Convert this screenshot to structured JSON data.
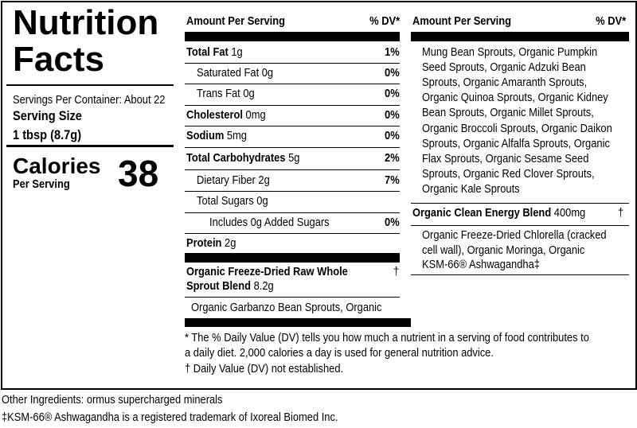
{
  "panel": {
    "title": "Nutrition Facts",
    "servings_per_container": "Servings Per Container: About 22",
    "serving_size_label": "Serving Size",
    "serving_size": "1 tbsp (8.7g)",
    "calories_label": "Calories",
    "calories_sub": "Per Serving",
    "calories": "38"
  },
  "nutrients": {
    "header": "Amount Per Serving",
    "dv_header": "% DV*",
    "rows": [
      {
        "name": "Total Fat",
        "amount": "1g",
        "dv": "1%"
      },
      {
        "name": "Saturated Fat",
        "amount": "0g",
        "dv": "0%"
      },
      {
        "name": "Trans Fat",
        "amount": "0g",
        "dv": "0%"
      },
      {
        "name": "Cholesterol",
        "amount": "0mg",
        "dv": "0%"
      },
      {
        "name": "Sodium",
        "amount": "5mg",
        "dv": "0%"
      },
      {
        "name": "Total Carbohydrates",
        "amount": "5g",
        "dv": "2%"
      },
      {
        "name": "Dietary Fiber",
        "amount": "2g",
        "dv": "7%"
      },
      {
        "name": "Total Sugars",
        "amount": "0g"
      },
      {
        "name": "Includes 0g Added Sugars",
        "dv": "0%"
      },
      {
        "name": "Protein",
        "amount": "2g"
      }
    ]
  },
  "sprout_blend": {
    "name_lines": [
      "Organic Freeze-Dried Raw Whole",
      "Sprout Blend"
    ],
    "amount": "8.2g",
    "dv": "†",
    "ingredients": [
      "Organic Garbanzo Bean Sprouts, Organic",
      "Mung Bean Sprouts, Organic Pumpkin",
      "Seed Sprouts, Organic Adzuki Bean",
      "Sprouts, Organic Amaranth Sprouts,",
      "Organic Quinoa Sprouts, Organic Kidney",
      "Bean Sprouts, Organic Millet Sprouts,",
      "Organic Broccoli Sprouts, Organic Daikon",
      "Sprouts, Organic Alfalfa Sprouts, Organic",
      "Flax Sprouts, Organic Sesame Seed",
      "Sprouts, Organic Red Clover Sprouts,",
      "Organic Kale Sprouts"
    ]
  },
  "right_column": {
    "header": "Amount Per Serving",
    "dv_header": "% DV*"
  },
  "energy_blend": {
    "name": "Organic Clean Energy Blend",
    "amount": "400mg",
    "dv": "†",
    "ingredients": [
      "Organic Freeze-Dried Chlorella (cracked",
      "cell wall), Organic Moringa, Organic",
      "KSM-66® Ashwagandha‡"
    ]
  },
  "footnotes": [
    "* The % Daily Value (DV) tells you how much a nutrient in a serving of food contributes to",
    "a daily diet. 2,000 calories a day is used for general nutrition advice.",
    "† Daily Value (DV) not established."
  ],
  "other_ingredients": "Other Ingredients: ormus supercharged minerals",
  "trademark": "‡KSM-66® Ashwagandha is a registered trademark of Ixoreal Biomed Inc."
}
